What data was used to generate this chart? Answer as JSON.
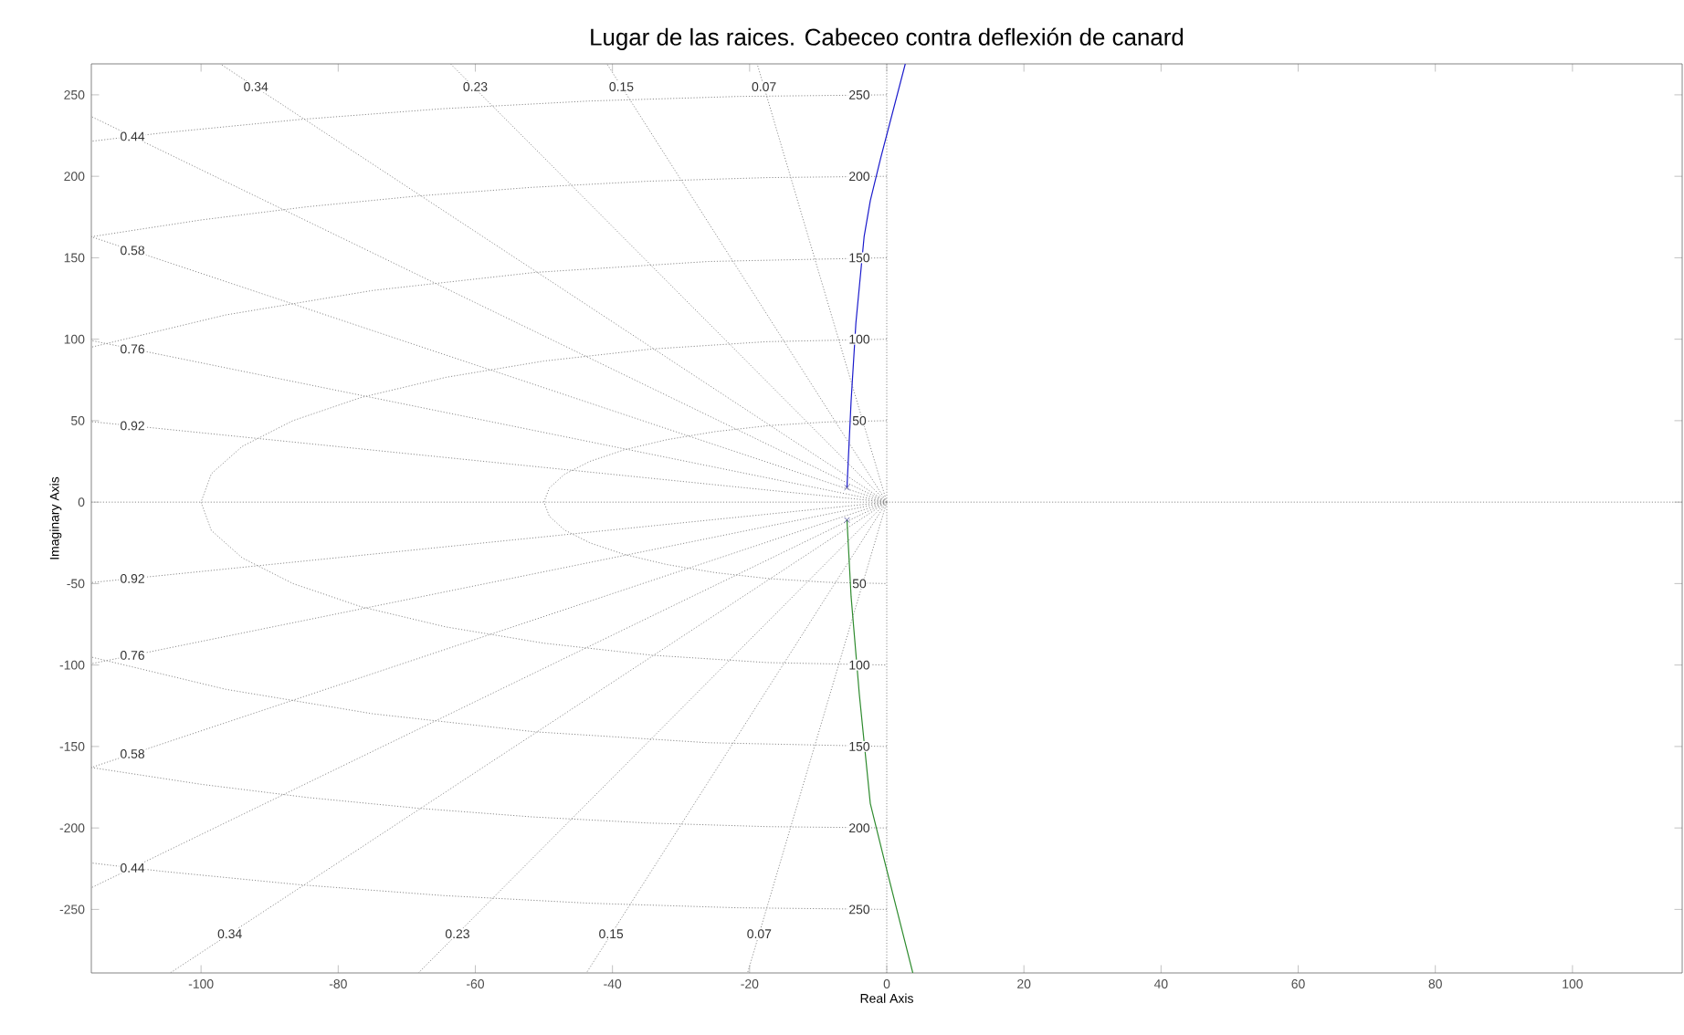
{
  "chart_data": {
    "type": "line",
    "title": "Lugar de las raices. Cabeceo contra deflexión de canard",
    "xlabel": "Real Axis",
    "ylabel": "Imaginary Axis",
    "xlim": [
      -116,
      116
    ],
    "ylim": [
      -289,
      269
    ],
    "xticks": [
      -100,
      -80,
      -60,
      -40,
      -20,
      0,
      20,
      40,
      60,
      80,
      100
    ],
    "yticks": [
      -250,
      -200,
      -150,
      -100,
      -50,
      0,
      50,
      100,
      150,
      200,
      250
    ],
    "series": [
      {
        "color": "#8c8c8c",
        "line_style": "dotted",
        "x": [
          -116,
          116
        ],
        "values": [
          0,
          0
        ]
      },
      {
        "color": "#8c8c8c",
        "line_style": "dotted",
        "x": [
          0,
          0
        ],
        "values": [
          -289,
          269
        ]
      },
      {
        "color": "#8c8c8c",
        "line_style": "dotted",
        "x": [
          0,
          -97.2
        ],
        "values": [
          0,
          269
        ]
      },
      {
        "color": "#8c8c8c",
        "line_style": "dotted",
        "x": [
          0,
          -63.6
        ],
        "values": [
          0,
          269
        ]
      },
      {
        "color": "#8c8c8c",
        "line_style": "dotted",
        "x": [
          0,
          -40.8
        ],
        "values": [
          0,
          269
        ]
      },
      {
        "color": "#8c8c8c",
        "line_style": "dotted",
        "x": [
          0,
          -18.9
        ],
        "values": [
          0,
          269
        ]
      },
      {
        "color": "#8c8c8c",
        "line_style": "dotted",
        "x": [
          0,
          -116
        ],
        "values": [
          0,
          236.7
        ]
      },
      {
        "color": "#8c8c8c",
        "line_style": "dotted",
        "x": [
          0,
          -116
        ],
        "values": [
          0,
          162.9
        ]
      },
      {
        "color": "#8c8c8c",
        "line_style": "dotted",
        "x": [
          0,
          -116
        ],
        "values": [
          0,
          99.2
        ]
      },
      {
        "color": "#8c8c8c",
        "line_style": "dotted",
        "x": [
          0,
          -116
        ],
        "values": [
          0,
          49.4
        ]
      },
      {
        "color": "#8c8c8c",
        "line_style": "dotted",
        "x": [
          0,
          -116
        ],
        "values": [
          0,
          -49.4
        ]
      },
      {
        "color": "#8c8c8c",
        "line_style": "dotted",
        "x": [
          0,
          -116
        ],
        "values": [
          0,
          -99.2
        ]
      },
      {
        "color": "#8c8c8c",
        "line_style": "dotted",
        "x": [
          0,
          -116
        ],
        "values": [
          0,
          -162.9
        ]
      },
      {
        "color": "#8c8c8c",
        "line_style": "dotted",
        "x": [
          0,
          -116
        ],
        "values": [
          0,
          -236.7
        ]
      },
      {
        "color": "#8c8c8c",
        "line_style": "dotted",
        "x": [
          0,
          -104.5
        ],
        "values": [
          0,
          -289
        ]
      },
      {
        "color": "#8c8c8c",
        "line_style": "dotted",
        "x": [
          0,
          -68.3
        ],
        "values": [
          0,
          -289
        ]
      },
      {
        "color": "#8c8c8c",
        "line_style": "dotted",
        "x": [
          0,
          -43.8
        ],
        "values": [
          0,
          -289
        ]
      },
      {
        "color": "#8c8c8c",
        "line_style": "dotted",
        "x": [
          0,
          -20.3
        ],
        "values": [
          0,
          -289
        ]
      },
      {
        "color": "#8c8c8c",
        "line_style": "dotted",
        "x": [
          0,
          -8.7,
          -17.1,
          -25,
          -32.1,
          -38.3,
          -43.3,
          -47,
          -49.2,
          -50,
          -49.2,
          -47,
          -43.3,
          -38.3,
          -32.1,
          -25,
          -17.1,
          -8.7,
          0
        ],
        "values": [
          50,
          49.2,
          47,
          43.3,
          38.3,
          32.1,
          25,
          17.1,
          8.7,
          0,
          -8.7,
          -17.1,
          -25,
          -32.1,
          -38.3,
          -43.3,
          -47,
          -49.2,
          -50
        ]
      },
      {
        "color": "#8c8c8c",
        "line_style": "dotted",
        "x": [
          0,
          -17.4,
          -34.2,
          -50,
          -64.3,
          -76.6,
          -86.6,
          -94,
          -98.5,
          -100,
          -98.5,
          -94,
          -86.6,
          -76.6,
          -64.3,
          -50,
          -34.2,
          -17.4,
          0
        ],
        "values": [
          100,
          98.5,
          94,
          86.6,
          76.6,
          64.3,
          50,
          34.2,
          17.4,
          0,
          -17.4,
          -34.2,
          -50,
          -64.3,
          -76.6,
          -86.6,
          -94,
          -98.5,
          -100
        ]
      },
      {
        "color": "#8c8c8c",
        "line_style": "dotted",
        "x": [
          0,
          -26,
          -51.3,
          -75,
          -96.4,
          -116
        ],
        "values": [
          150,
          147.7,
          141,
          129.9,
          114.9,
          95.1
        ]
      },
      {
        "color": "#8c8c8c",
        "line_style": "dotted",
        "x": [
          0,
          -26,
          -51.3,
          -75,
          -96.4,
          -116
        ],
        "values": [
          -150,
          -147.7,
          -141,
          -129.9,
          -114.9,
          -95.1
        ]
      },
      {
        "color": "#8c8c8c",
        "line_style": "dotted",
        "x": [
          0,
          -17.4,
          -34.7,
          -51.8,
          -68.4,
          -84.5,
          -100,
          -116
        ],
        "values": [
          200,
          199.2,
          197,
          193.2,
          187.9,
          181.3,
          173.2,
          162.9
        ]
      },
      {
        "color": "#8c8c8c",
        "line_style": "dotted",
        "x": [
          0,
          -17.4,
          -34.7,
          -51.8,
          -68.4,
          -84.5,
          -100,
          -116
        ],
        "values": [
          -200,
          -199.2,
          -197,
          -193.2,
          -187.9,
          -181.3,
          -173.2,
          -162.9
        ]
      },
      {
        "color": "#8c8c8c",
        "line_style": "dotted",
        "x": [
          0,
          -21.8,
          -43.4,
          -64.7,
          -85.5,
          -105.7,
          -116
        ],
        "values": [
          250,
          249,
          246.2,
          241.5,
          234.9,
          226.6,
          221.5
        ]
      },
      {
        "color": "#8c8c8c",
        "line_style": "dotted",
        "x": [
          0,
          -21.8,
          -43.4,
          -64.7,
          -85.5,
          -105.7,
          -116
        ],
        "values": [
          -250,
          -249,
          -246.2,
          -241.5,
          -234.9,
          -226.6,
          -221.5
        ]
      },
      {
        "color": "#1a1acc",
        "x": [
          -5.8,
          -5.2,
          -4.5,
          -3.3,
          -2.4,
          -0.9,
          2.7
        ],
        "values": [
          9,
          62,
          110,
          163,
          185,
          211,
          269
        ]
      },
      {
        "color": "#2e8b2e",
        "x": [
          -5.8,
          -5.2,
          -4.0,
          -2.4,
          -0.4,
          3.8
        ],
        "values": [
          -11,
          -58,
          -118,
          -185,
          -219,
          -289
        ]
      },
      {
        "type": "scatter",
        "marker": "cross",
        "color": "#3a3a8a",
        "x": [
          -5.8,
          -5.8
        ],
        "values": [
          9,
          -11
        ]
      }
    ],
    "annotations": [
      {
        "text": "0.34",
        "x": -92,
        "y": 255
      },
      {
        "text": "0.23",
        "x": -60,
        "y": 255
      },
      {
        "text": "0.15",
        "x": -38.7,
        "y": 255
      },
      {
        "text": "0.07",
        "x": -17.9,
        "y": 255
      },
      {
        "text": "0.44",
        "x": -110,
        "y": 224.5
      },
      {
        "text": "0.58",
        "x": -110,
        "y": 154.5
      },
      {
        "text": "0.76",
        "x": -110,
        "y": 94
      },
      {
        "text": "0.92",
        "x": -110,
        "y": 46.9
      },
      {
        "text": "0.92",
        "x": -110,
        "y": -46.9
      },
      {
        "text": "0.76",
        "x": -110,
        "y": -94
      },
      {
        "text": "0.58",
        "x": -110,
        "y": -154.5
      },
      {
        "text": "0.44",
        "x": -110,
        "y": -224.5
      },
      {
        "text": "0.34",
        "x": -95.8,
        "y": -265
      },
      {
        "text": "0.23",
        "x": -62.6,
        "y": -265
      },
      {
        "text": "0.15",
        "x": -40.2,
        "y": -265
      },
      {
        "text": "0.07",
        "x": -18.6,
        "y": -265
      },
      {
        "text": "250",
        "x": -4,
        "y": 250
      },
      {
        "text": "200",
        "x": -4,
        "y": 200
      },
      {
        "text": "150",
        "x": -4,
        "y": 150
      },
      {
        "text": "100",
        "x": -4,
        "y": 100
      },
      {
        "text": "50",
        "x": -4,
        "y": 50
      },
      {
        "text": "50",
        "x": -4,
        "y": -50
      },
      {
        "text": "100",
        "x": -4,
        "y": -100
      },
      {
        "text": "150",
        "x": -4,
        "y": -150
      },
      {
        "text": "200",
        "x": -4,
        "y": -200
      },
      {
        "text": "250",
        "x": -4,
        "y": -250
      }
    ]
  }
}
